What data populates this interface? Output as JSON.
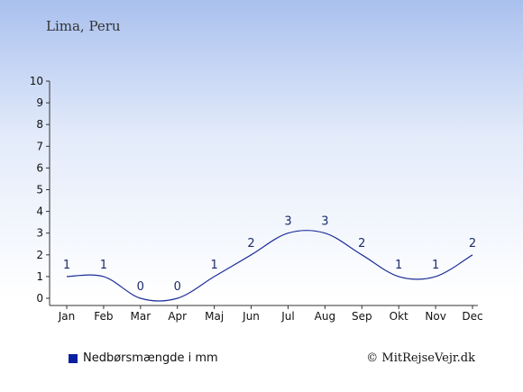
{
  "chart_data": {
    "type": "line",
    "subtitle": "Lima, Peru",
    "categories": [
      "Jan",
      "Feb",
      "Mar",
      "Apr",
      "Maj",
      "Jun",
      "Jul",
      "Aug",
      "Sep",
      "Okt",
      "Nov",
      "Dec"
    ],
    "series": [
      {
        "name": "Nedbørsmængde i mm",
        "values": [
          1,
          1,
          0,
          0,
          1,
          2,
          3,
          3,
          2,
          1,
          1,
          2
        ],
        "color": "#1c2f99"
      }
    ],
    "ylim": [
      0,
      10
    ],
    "yticks": [
      0,
      1,
      2,
      3,
      4,
      5,
      6,
      7,
      8,
      9,
      10
    ],
    "grid": false,
    "legend_position": "bottom-left"
  },
  "credit": "© MitRejseVejr.dk",
  "colors": {
    "legend_swatch": "#0a1fa0",
    "axis": "#333333"
  }
}
